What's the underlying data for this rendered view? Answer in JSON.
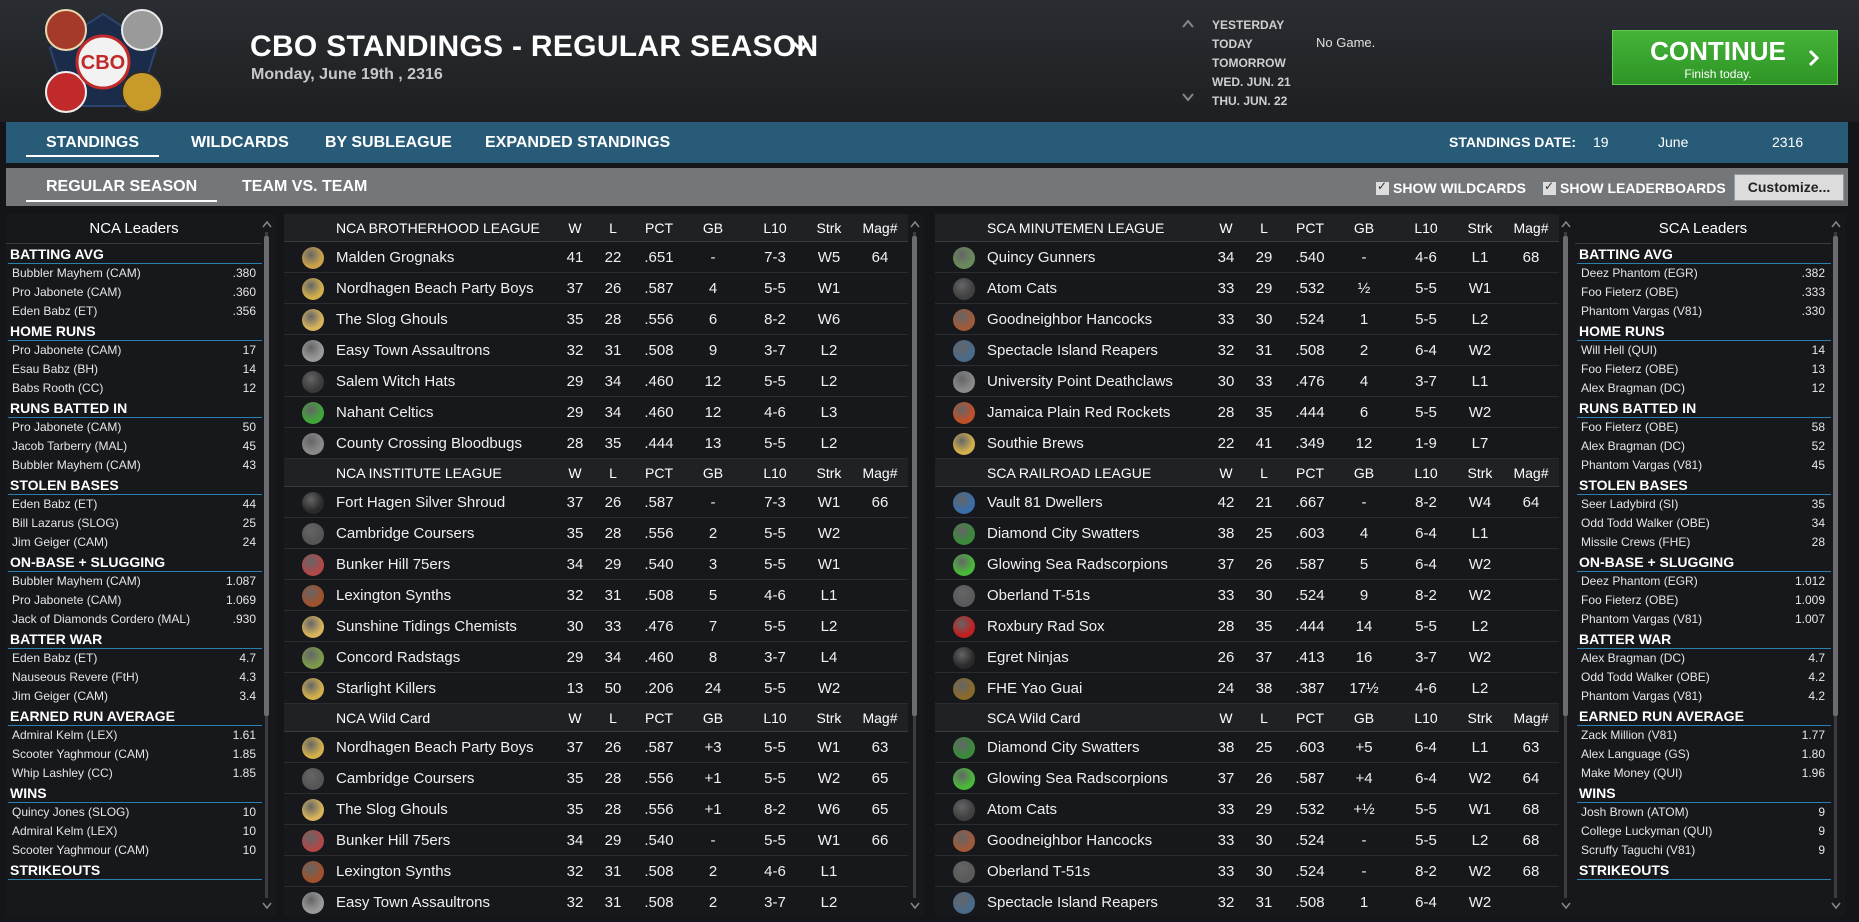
{
  "header": {
    "title": "CBO STANDINGS - REGULAR SEASON",
    "date": "Monday, June 19th , 2316",
    "logo_text": "CBO",
    "days": [
      "YESTERDAY",
      "TODAY",
      "TOMORROW",
      "WED. JUN. 21",
      "THU. JUN. 22"
    ],
    "no_game": "No Game.",
    "continue_label": "CONTINUE",
    "continue_sub": "Finish today.",
    "continue_color": "#3aa82e"
  },
  "tabs": {
    "standings": "STANDINGS",
    "wildcards": "WILDCARDS",
    "by_subleague": "BY SUBLEAGUE",
    "expanded": "EXPANDED STANDINGS",
    "standings_date_label": "STANDINGS DATE:",
    "date_day": "19",
    "date_month": "June",
    "date_year": "2316"
  },
  "subtabs": {
    "regular_season": "REGULAR SEASON",
    "team_vs_team": "TEAM VS. TEAM",
    "show_wildcards": "SHOW WILDCARDS",
    "show_leaderboards": "SHOW LEADERBOARDS",
    "customize": "Customize..."
  },
  "nca_leaders": {
    "title": "NCA Leaders",
    "categories": [
      {
        "title": "BATTING AVG",
        "rows": [
          {
            "name": "Bubbler Mayhem (CAM)",
            "value": ".380"
          },
          {
            "name": "Pro Jabonete (CAM)",
            "value": ".360"
          },
          {
            "name": "Eden Babz (ET)",
            "value": ".356"
          }
        ]
      },
      {
        "title": "HOME RUNS",
        "rows": [
          {
            "name": "Pro Jabonete (CAM)",
            "value": "17"
          },
          {
            "name": "Esau Babz (BH)",
            "value": "14"
          },
          {
            "name": "Babs Rooth (CC)",
            "value": "12"
          }
        ]
      },
      {
        "title": "RUNS BATTED IN",
        "rows": [
          {
            "name": "Pro Jabonete (CAM)",
            "value": "50"
          },
          {
            "name": "Jacob Tarberry (MAL)",
            "value": "45"
          },
          {
            "name": "Bubbler Mayhem (CAM)",
            "value": "43"
          }
        ]
      },
      {
        "title": "STOLEN BASES",
        "rows": [
          {
            "name": "Eden Babz (ET)",
            "value": "44"
          },
          {
            "name": "Bill Lazarus (SLOG)",
            "value": "25"
          },
          {
            "name": "Jim Geiger (CAM)",
            "value": "24"
          }
        ]
      },
      {
        "title": "ON-BASE + SLUGGING",
        "rows": [
          {
            "name": "Bubbler Mayhem (CAM)",
            "value": "1.087"
          },
          {
            "name": "Pro Jabonete (CAM)",
            "value": "1.069"
          },
          {
            "name": "Jack of Diamonds Cordero (MAL)",
            "value": ".930"
          }
        ]
      },
      {
        "title": "BATTER WAR",
        "rows": [
          {
            "name": "Eden Babz (ET)",
            "value": "4.7"
          },
          {
            "name": "Nauseous Revere (FtH)",
            "value": "4.3"
          },
          {
            "name": "Jim Geiger (CAM)",
            "value": "3.4"
          }
        ]
      },
      {
        "title": "EARNED RUN AVERAGE",
        "rows": [
          {
            "name": "Admiral Kelm (LEX)",
            "value": "1.61"
          },
          {
            "name": "Scooter Yaghmour (CAM)",
            "value": "1.85"
          },
          {
            "name": "Whip Lashley (CC)",
            "value": "1.85"
          }
        ]
      },
      {
        "title": "WINS",
        "rows": [
          {
            "name": "Quincy Jones (SLOG)",
            "value": "10"
          },
          {
            "name": "Admiral Kelm (LEX)",
            "value": "10"
          },
          {
            "name": "Scooter Yaghmour (CAM)",
            "value": "10"
          }
        ]
      },
      {
        "title": "STRIKEOUTS",
        "rows": []
      }
    ]
  },
  "sca_leaders": {
    "title": "SCA Leaders",
    "categories": [
      {
        "title": "BATTING AVG",
        "rows": [
          {
            "name": "Deez Phantom (EGR)",
            "value": ".382"
          },
          {
            "name": "Foo Fieterz (OBE)",
            "value": ".333"
          },
          {
            "name": "Phantom Vargas (V81)",
            "value": ".330"
          }
        ]
      },
      {
        "title": "HOME RUNS",
        "rows": [
          {
            "name": "Will Hell (QUI)",
            "value": "14"
          },
          {
            "name": "Foo Fieterz (OBE)",
            "value": "13"
          },
          {
            "name": "Alex Bragman (DC)",
            "value": "12"
          }
        ]
      },
      {
        "title": "RUNS BATTED IN",
        "rows": [
          {
            "name": "Foo Fieterz (OBE)",
            "value": "58"
          },
          {
            "name": "Alex Bragman (DC)",
            "value": "52"
          },
          {
            "name": "Phantom Vargas (V81)",
            "value": "45"
          }
        ]
      },
      {
        "title": "STOLEN BASES",
        "rows": [
          {
            "name": "Seer Ladybird (SI)",
            "value": "35"
          },
          {
            "name": "Odd Todd Walker (OBE)",
            "value": "34"
          },
          {
            "name": "Missile Crews (FHE)",
            "value": "28"
          }
        ]
      },
      {
        "title": "ON-BASE + SLUGGING",
        "rows": [
          {
            "name": "Deez Phantom (EGR)",
            "value": "1.012"
          },
          {
            "name": "Foo Fieterz (OBE)",
            "value": "1.009"
          },
          {
            "name": "Phantom Vargas (V81)",
            "value": "1.007"
          }
        ]
      },
      {
        "title": "BATTER WAR",
        "rows": [
          {
            "name": "Alex Bragman (DC)",
            "value": "4.7"
          },
          {
            "name": "Odd Todd Walker (OBE)",
            "value": "4.2"
          },
          {
            "name": "Phantom Vargas (V81)",
            "value": "4.2"
          }
        ]
      },
      {
        "title": "EARNED RUN AVERAGE",
        "rows": [
          {
            "name": "Zack Million (V81)",
            "value": "1.77"
          },
          {
            "name": "Alex Language (GS)",
            "value": "1.80"
          },
          {
            "name": "Make Money (QUI)",
            "value": "1.96"
          }
        ]
      },
      {
        "title": "WINS",
        "rows": [
          {
            "name": "Josh Brown (ATOM)",
            "value": "9"
          },
          {
            "name": "College Luckyman (QUI)",
            "value": "9"
          },
          {
            "name": "Scruffy Taguchi (V81)",
            "value": "9"
          }
        ]
      },
      {
        "title": "STRIKEOUTS",
        "rows": []
      }
    ]
  },
  "columns": [
    "W",
    "L",
    "PCT",
    "GB",
    "L10",
    "Strk",
    "Mag#"
  ],
  "nca_tables": [
    {
      "title": "NCA BROTHERHOOD LEAGUE",
      "rows": [
        {
          "team": "Malden Grognaks",
          "w": "41",
          "l": "22",
          "pct": ".651",
          "gb": "-",
          "l10": "7-3",
          "strk": "W5",
          "mag": "64",
          "color": "#c9a24a"
        },
        {
          "team": "Nordhagen Beach Party Boys",
          "w": "37",
          "l": "26",
          "pct": ".587",
          "gb": "4",
          "l10": "5-5",
          "strk": "W1",
          "mag": "",
          "color": "#d2b04c"
        },
        {
          "team": "The Slog Ghouls",
          "w": "35",
          "l": "28",
          "pct": ".556",
          "gb": "6",
          "l10": "8-2",
          "strk": "W6",
          "mag": "",
          "color": "#d6b35c"
        },
        {
          "team": "Easy Town Assaultrons",
          "w": "32",
          "l": "31",
          "pct": ".508",
          "gb": "9",
          "l10": "3-7",
          "strk": "L2",
          "mag": "",
          "color": "#9a9a9a"
        },
        {
          "team": "Salem Witch Hats",
          "w": "29",
          "l": "34",
          "pct": ".460",
          "gb": "12",
          "l10": "5-5",
          "strk": "L2",
          "mag": "",
          "color": "#3a3a3a"
        },
        {
          "team": "Nahant Celtics",
          "w": "29",
          "l": "34",
          "pct": ".460",
          "gb": "12",
          "l10": "4-6",
          "strk": "L3",
          "mag": "",
          "color": "#3fa63a"
        },
        {
          "team": "County Crossing Bloodbugs",
          "w": "28",
          "l": "35",
          "pct": ".444",
          "gb": "13",
          "l10": "5-5",
          "strk": "L2",
          "mag": "",
          "color": "#8a8a8a"
        }
      ]
    },
    {
      "title": "NCA INSTITUTE LEAGUE",
      "rows": [
        {
          "team": "Fort Hagen Silver Shroud",
          "w": "37",
          "l": "26",
          "pct": ".587",
          "gb": "-",
          "l10": "7-3",
          "strk": "W1",
          "mag": "66",
          "color": "#2a2a2a"
        },
        {
          "team": "Cambridge Coursers",
          "w": "35",
          "l": "28",
          "pct": ".556",
          "gb": "2",
          "l10": "5-5",
          "strk": "W2",
          "mag": "",
          "color": "#555555"
        },
        {
          "team": "Bunker Hill 75ers",
          "w": "34",
          "l": "29",
          "pct": ".540",
          "gb": "3",
          "l10": "5-5",
          "strk": "W1",
          "mag": "",
          "color": "#b04848"
        },
        {
          "team": "Lexington Synths",
          "w": "32",
          "l": "31",
          "pct": ".508",
          "gb": "5",
          "l10": "4-6",
          "strk": "L1",
          "mag": "",
          "color": "#a0522d"
        },
        {
          "team": "Sunshine Tidings Chemists",
          "w": "30",
          "l": "33",
          "pct": ".476",
          "gb": "7",
          "l10": "5-5",
          "strk": "L2",
          "mag": "",
          "color": "#d6b35c"
        },
        {
          "team": "Concord Radstags",
          "w": "29",
          "l": "34",
          "pct": ".460",
          "gb": "8",
          "l10": "3-7",
          "strk": "L4",
          "mag": "",
          "color": "#7b9a4a"
        },
        {
          "team": "Starlight Killers",
          "w": "13",
          "l": "50",
          "pct": ".206",
          "gb": "24",
          "l10": "5-5",
          "strk": "W2",
          "mag": "",
          "color": "#d2b04c"
        }
      ]
    },
    {
      "title": "NCA  Wild Card",
      "rows": [
        {
          "team": "Nordhagen Beach Party Boys",
          "w": "37",
          "l": "26",
          "pct": ".587",
          "gb": "+3",
          "l10": "5-5",
          "strk": "W1",
          "mag": "63",
          "color": "#d2b04c"
        },
        {
          "team": "Cambridge Coursers",
          "w": "35",
          "l": "28",
          "pct": ".556",
          "gb": "+1",
          "l10": "5-5",
          "strk": "W2",
          "mag": "65",
          "color": "#555555"
        },
        {
          "team": "The Slog Ghouls",
          "w": "35",
          "l": "28",
          "pct": ".556",
          "gb": "+1",
          "l10": "8-2",
          "strk": "W6",
          "mag": "65",
          "color": "#d6b35c"
        },
        {
          "team": "Bunker Hill 75ers",
          "w": "34",
          "l": "29",
          "pct": ".540",
          "gb": "-",
          "l10": "5-5",
          "strk": "W1",
          "mag": "66",
          "color": "#b04848"
        },
        {
          "team": "Lexington Synths",
          "w": "32",
          "l": "31",
          "pct": ".508",
          "gb": "2",
          "l10": "4-6",
          "strk": "L1",
          "mag": "",
          "color": "#a0522d"
        },
        {
          "team": "Easy Town Assaultrons",
          "w": "32",
          "l": "31",
          "pct": ".508",
          "gb": "2",
          "l10": "3-7",
          "strk": "L2",
          "mag": "",
          "color": "#9a9a9a"
        }
      ]
    }
  ],
  "sca_tables": [
    {
      "title": "SCA MINUTEMEN LEAGUE",
      "rows": [
        {
          "team": "Quincy Gunners",
          "w": "34",
          "l": "29",
          "pct": ".540",
          "gb": "-",
          "l10": "4-6",
          "strk": "L1",
          "mag": "68",
          "color": "#6a8a5a"
        },
        {
          "team": "Atom Cats",
          "w": "33",
          "l": "29",
          "pct": ".532",
          "gb": "½",
          "l10": "5-5",
          "strk": "W1",
          "mag": "",
          "color": "#404040"
        },
        {
          "team": "Goodneighbor Hancocks",
          "w": "33",
          "l": "30",
          "pct": ".524",
          "gb": "1",
          "l10": "5-5",
          "strk": "L2",
          "mag": "",
          "color": "#a05a3a"
        },
        {
          "team": "Spectacle Island Reapers",
          "w": "32",
          "l": "31",
          "pct": ".508",
          "gb": "2",
          "l10": "6-4",
          "strk": "W2",
          "mag": "",
          "color": "#4a6a8a"
        },
        {
          "team": "University Point Deathclaws",
          "w": "30",
          "l": "33",
          "pct": ".476",
          "gb": "4",
          "l10": "3-7",
          "strk": "L1",
          "mag": "",
          "color": "#8a8a8a"
        },
        {
          "team": "Jamaica Plain Red Rockets",
          "w": "28",
          "l": "35",
          "pct": ".444",
          "gb": "6",
          "l10": "5-5",
          "strk": "W2",
          "mag": "",
          "color": "#c0502a"
        },
        {
          "team": "Southie Brews",
          "w": "22",
          "l": "41",
          "pct": ".349",
          "gb": "12",
          "l10": "1-9",
          "strk": "L7",
          "mag": "",
          "color": "#d2b04c"
        }
      ]
    },
    {
      "title": "SCA RAILROAD LEAGUE",
      "rows": [
        {
          "team": "Vault 81 Dwellers",
          "w": "42",
          "l": "21",
          "pct": ".667",
          "gb": "-",
          "l10": "8-2",
          "strk": "W4",
          "mag": "64",
          "color": "#3a6ea8"
        },
        {
          "team": "Diamond City Swatters",
          "w": "38",
          "l": "25",
          "pct": ".603",
          "gb": "4",
          "l10": "6-4",
          "strk": "L1",
          "mag": "",
          "color": "#3a8a3a"
        },
        {
          "team": "Glowing Sea Radscorpions",
          "w": "37",
          "l": "26",
          "pct": ".587",
          "gb": "5",
          "l10": "6-4",
          "strk": "W2",
          "mag": "",
          "color": "#4ab83a"
        },
        {
          "team": "Oberland T-51s",
          "w": "33",
          "l": "30",
          "pct": ".524",
          "gb": "9",
          "l10": "8-2",
          "strk": "W2",
          "mag": "",
          "color": "#5a5a5a"
        },
        {
          "team": "Roxbury Rad Sox",
          "w": "28",
          "l": "35",
          "pct": ".444",
          "gb": "14",
          "l10": "5-5",
          "strk": "L2",
          "mag": "",
          "color": "#c02020"
        },
        {
          "team": "Egret Ninjas",
          "w": "26",
          "l": "37",
          "pct": ".413",
          "gb": "16",
          "l10": "3-7",
          "strk": "W2",
          "mag": "",
          "color": "#2a2a2a"
        },
        {
          "team": "FHE Yao Guai",
          "w": "24",
          "l": "38",
          "pct": ".387",
          "gb": "17½",
          "l10": "4-6",
          "strk": "L2",
          "mag": "",
          "color": "#8a6a2a"
        }
      ]
    },
    {
      "title": "SCA  Wild Card",
      "rows": [
        {
          "team": "Diamond City Swatters",
          "w": "38",
          "l": "25",
          "pct": ".603",
          "gb": "+5",
          "l10": "6-4",
          "strk": "L1",
          "mag": "63",
          "color": "#3a8a3a"
        },
        {
          "team": "Glowing Sea Radscorpions",
          "w": "37",
          "l": "26",
          "pct": ".587",
          "gb": "+4",
          "l10": "6-4",
          "strk": "W2",
          "mag": "64",
          "color": "#4ab83a"
        },
        {
          "team": "Atom Cats",
          "w": "33",
          "l": "29",
          "pct": ".532",
          "gb": "+½",
          "l10": "5-5",
          "strk": "W1",
          "mag": "68",
          "color": "#404040"
        },
        {
          "team": "Goodneighbor Hancocks",
          "w": "33",
          "l": "30",
          "pct": ".524",
          "gb": "-",
          "l10": "5-5",
          "strk": "L2",
          "mag": "68",
          "color": "#a05a3a"
        },
        {
          "team": "Oberland T-51s",
          "w": "33",
          "l": "30",
          "pct": ".524",
          "gb": "-",
          "l10": "8-2",
          "strk": "W2",
          "mag": "68",
          "color": "#5a5a5a"
        },
        {
          "team": "Spectacle Island Reapers",
          "w": "32",
          "l": "31",
          "pct": ".508",
          "gb": "1",
          "l10": "6-4",
          "strk": "W2",
          "mag": "",
          "color": "#4a6a8a"
        }
      ]
    }
  ]
}
